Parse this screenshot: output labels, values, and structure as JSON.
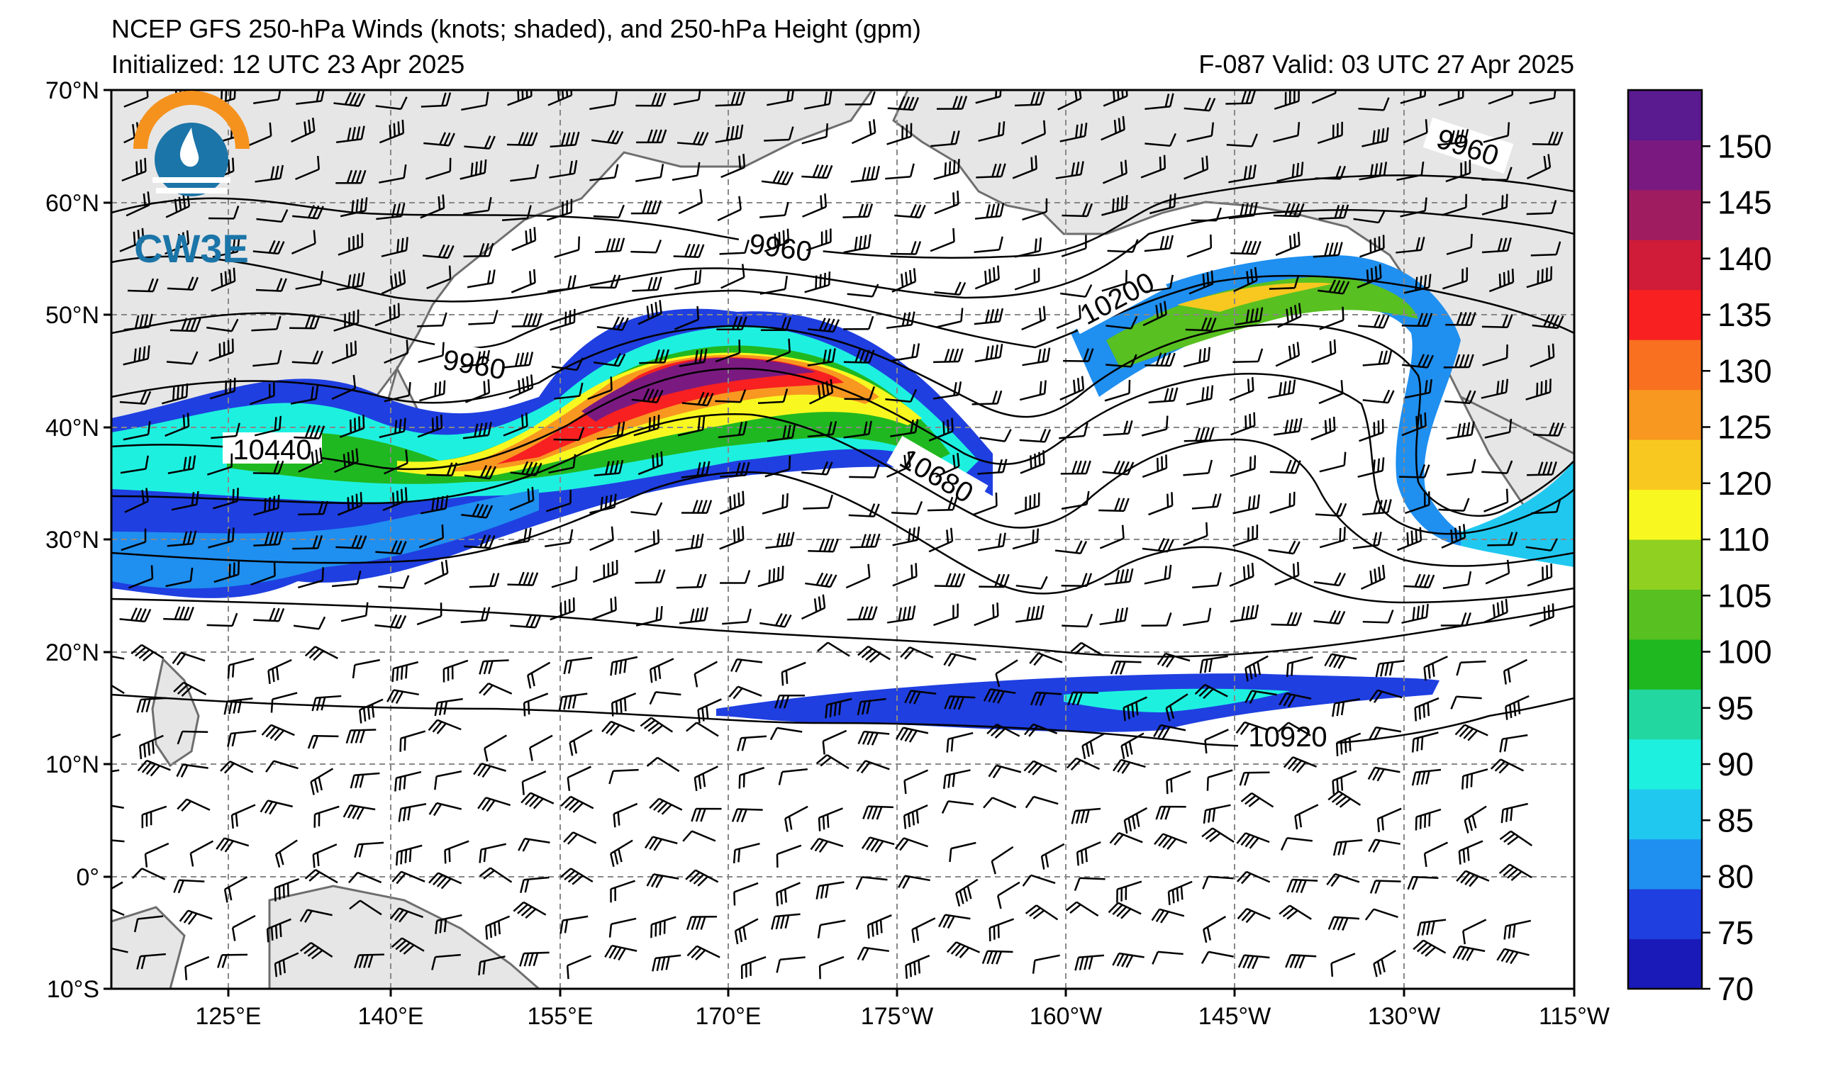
{
  "header": {
    "title": "NCEP GFS 250-hPa Winds (knots; shaded), and 250-hPa Height (gpm)",
    "initialized": "Initialized: 12 UTC 23 Apr 2025",
    "valid": "F-087  Valid: 03 UTC 27 Apr 2025"
  },
  "logo": {
    "text": "CW3E",
    "alt_text": "CW3E logo"
  },
  "axes": {
    "lat_labels": [
      "70°N",
      "60°N",
      "50°N",
      "40°N",
      "30°N",
      "20°N",
      "10°N",
      "0°",
      "10°S"
    ],
    "lat_values": [
      70,
      60,
      50,
      40,
      30,
      20,
      10,
      0,
      -10
    ],
    "lon_labels": [
      "125°E",
      "140°E",
      "155°E",
      "170°E",
      "175°W",
      "160°W",
      "145°W",
      "130°W",
      "115°W"
    ],
    "lon_values": [
      125,
      140,
      155,
      170,
      185,
      200,
      215,
      230,
      245
    ],
    "lon_range": [
      110,
      245
    ],
    "lat_range": [
      -10,
      70
    ]
  },
  "colorbar": {
    "ticks": [
      "70",
      "75",
      "80",
      "85",
      "90",
      "95",
      "100",
      "105",
      "110",
      "120",
      "125",
      "130",
      "135",
      "140",
      "145",
      "150"
    ],
    "colors": [
      "#1a1ab8",
      "#1f3fe0",
      "#1f8ff0",
      "#20c8f0",
      "#1ef0e0",
      "#22d8a0",
      "#20b820",
      "#58c020",
      "#90d020",
      "#f8f820",
      "#f8c820",
      "#f89820",
      "#f87020",
      "#f82020",
      "#d01c38",
      "#a01c60",
      "#7a1a80",
      "#5a1a90"
    ]
  },
  "contours": {
    "labels": [
      {
        "text": "9960",
        "lon": 165,
        "lat": 58
      },
      {
        "text": "9960",
        "lon": 140,
        "lat": 47
      },
      {
        "text": "9960",
        "lon": 235,
        "lat": 63
      },
      {
        "text": "10200",
        "lon": 202,
        "lat": 51
      },
      {
        "text": "10440",
        "lon": 124,
        "lat": 38
      },
      {
        "text": "10680",
        "lon": 179,
        "lat": 35
      },
      {
        "text": "10920",
        "lon": 220,
        "lat": 12
      }
    ]
  },
  "colors": {
    "land": "#e6e6e6",
    "coast": "#6e6e6e",
    "grid": "#888888",
    "contour": "#000000"
  }
}
